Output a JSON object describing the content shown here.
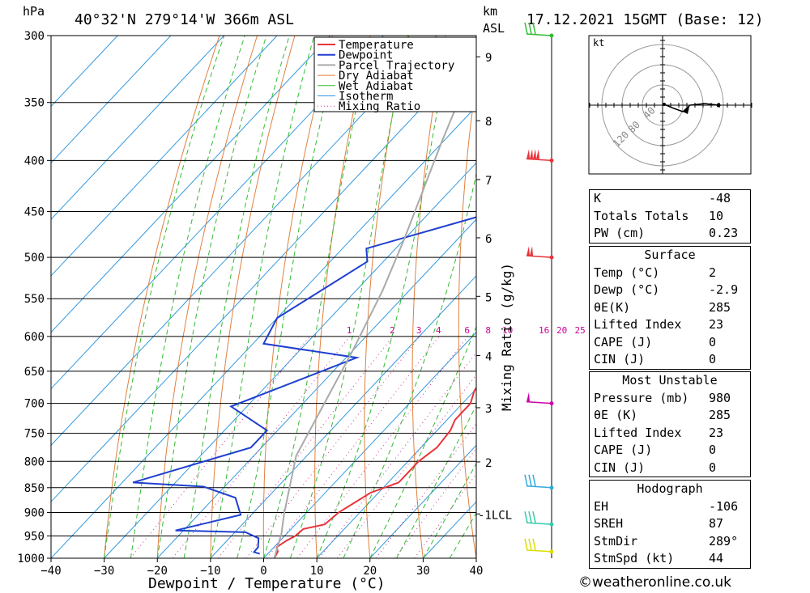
{
  "header": {
    "location": "40°32'N 279°14'W 366m ASL",
    "datetime": "17.12.2021 15GMT (Base: 12)",
    "pressure_unit": "hPa",
    "height_unit_1": "km",
    "height_unit_2": "ASL"
  },
  "chart_data": {
    "type": "line",
    "title": "",
    "xlabel": "Dewpoint / Temperature (°C)",
    "y2label": "Mixing Ratio (g/kg)",
    "xlim": [
      -40,
      40
    ],
    "ylim": [
      1000,
      300
    ],
    "x_ticks": [
      "-40",
      "-30",
      "-20",
      "-10",
      "0",
      "10",
      "20",
      "30",
      "40"
    ],
    "pressure_levels": [
      300,
      350,
      400,
      450,
      500,
      550,
      600,
      650,
      700,
      750,
      800,
      850,
      900,
      950,
      1000
    ],
    "height_km_ticks": [
      {
        "label": "9",
        "p": 315
      },
      {
        "label": "8",
        "p": 365
      },
      {
        "label": "7",
        "p": 418
      },
      {
        "label": "6",
        "p": 478
      },
      {
        "label": "5",
        "p": 547
      },
      {
        "label": "4",
        "p": 627
      },
      {
        "label": "3",
        "p": 707
      },
      {
        "label": "2",
        "p": 801
      },
      {
        "label": "1LCL",
        "p": 903
      }
    ],
    "mixing_ratio_labels": [
      "1",
      "2",
      "3",
      "4",
      "6",
      "8",
      "10",
      "16",
      "20",
      "25"
    ],
    "legend": [
      "Temperature",
      "Dewpoint",
      "Parcel Trajectory",
      "Dry Adiabat",
      "Wet Adiabat",
      "Isotherm",
      "Mixing Ratio"
    ],
    "series": [
      {
        "name": "Temperature",
        "color": "#e8343a",
        "points": [
          [
            2,
            1000
          ],
          [
            1.5,
            985
          ],
          [
            0.5,
            975
          ],
          [
            1.2,
            960
          ],
          [
            2,
            950
          ],
          [
            2.3,
            935
          ],
          [
            5.5,
            925
          ],
          [
            6,
            900
          ],
          [
            8.5,
            860
          ],
          [
            12,
            840
          ],
          [
            12,
            800
          ],
          [
            13,
            775
          ],
          [
            12.5,
            745
          ],
          [
            11.5,
            727
          ],
          [
            11.5,
            700
          ],
          [
            10,
            680
          ],
          [
            9,
            650
          ],
          [
            9,
            625
          ],
          [
            10.5,
            610
          ],
          [
            10.5,
            600
          ],
          [
            9,
            590
          ],
          [
            7,
            570
          ],
          [
            4.2,
            530
          ],
          [
            3.5,
            500
          ],
          [
            1.5,
            475
          ],
          [
            -1,
            450
          ],
          [
            -2,
            425
          ],
          [
            -2,
            405
          ],
          [
            -2.5,
            398
          ],
          [
            -5,
            375
          ],
          [
            -9,
            330
          ],
          [
            -10,
            310
          ],
          [
            -10.5,
            300
          ]
        ]
      },
      {
        "name": "Dewpoint",
        "color": "#2040d0",
        "points": [
          [
            -1.5,
            990
          ],
          [
            -2.9,
            986
          ],
          [
            -3,
            975
          ],
          [
            -4.5,
            955
          ],
          [
            -8,
            942
          ],
          [
            -21.5,
            938
          ],
          [
            -12,
            905
          ],
          [
            -16,
            870
          ],
          [
            -24,
            848
          ],
          [
            -38,
            840
          ],
          [
            -22,
            775
          ],
          [
            -22,
            745
          ],
          [
            -33,
            705
          ],
          [
            -18,
            630
          ],
          [
            -38,
            610
          ],
          [
            -40,
            575
          ],
          [
            -33,
            505
          ],
          [
            -35.5,
            490
          ],
          [
            -20,
            455
          ],
          [
            -11,
            438
          ],
          [
            -14,
            420
          ],
          [
            -23,
            402
          ],
          [
            -24,
            400
          ],
          [
            -24,
            330
          ],
          [
            -27,
            320
          ],
          [
            -10,
            310
          ],
          [
            -10,
            305
          ],
          [
            -13,
            300
          ]
        ]
      },
      {
        "name": "Parcel Trajectory",
        "color": "#aaaaaa",
        "points": [
          [
            2,
            1000
          ],
          [
            -1,
            945
          ],
          [
            -4,
            903
          ],
          [
            -12,
            790
          ],
          [
            -16,
            700
          ],
          [
            -20,
            620
          ],
          [
            -25,
            540
          ],
          [
            -30,
            480
          ],
          [
            -40,
            385
          ],
          [
            -48,
            320
          ],
          [
            -50,
            300
          ]
        ]
      }
    ],
    "wind_barbs_p": [
      300,
      400,
      500,
      700,
      850,
      925,
      985
    ],
    "wind_barb_colors": [
      "#33bb33",
      "#e8343a",
      "#e8343a",
      "#cc00aa",
      "#33aadd",
      "#33ccaa",
      "#dddd00"
    ]
  },
  "hodograph": {
    "unit": "kt",
    "ring_labels": [
      "40",
      "80",
      "120"
    ]
  },
  "indices": [
    {
      "label": "K",
      "value": "-48"
    },
    {
      "label": "Totals Totals",
      "value": "10"
    },
    {
      "label": "PW (cm)",
      "value": "0.23"
    }
  ],
  "surface": {
    "title": "Surface",
    "rows": [
      {
        "label": "Temp (°C)",
        "value": "2"
      },
      {
        "label": "Dewp (°C)",
        "value": "-2.9"
      },
      {
        "label": "θE(K)",
        "value": "285"
      },
      {
        "label": "Lifted Index",
        "value": "23"
      },
      {
        "label": "CAPE (J)",
        "value": "0"
      },
      {
        "label": "CIN (J)",
        "value": "0"
      }
    ]
  },
  "most_unstable": {
    "title": "Most Unstable",
    "rows": [
      {
        "label": "Pressure (mb)",
        "value": "980"
      },
      {
        "label": "θE (K)",
        "value": "285"
      },
      {
        "label": "Lifted Index",
        "value": "23"
      },
      {
        "label": "CAPE (J)",
        "value": "0"
      },
      {
        "label": "CIN (J)",
        "value": "0"
      }
    ]
  },
  "hodograph_stats": {
    "title": "Hodograph",
    "rows": [
      {
        "label": "EH",
        "value": "-106"
      },
      {
        "label": "SREH",
        "value": "87"
      },
      {
        "label": "StmDir",
        "value": "289°"
      },
      {
        "label": "StmSpd (kt)",
        "value": "44"
      }
    ]
  },
  "copyright": "©weatheronline.co.uk"
}
